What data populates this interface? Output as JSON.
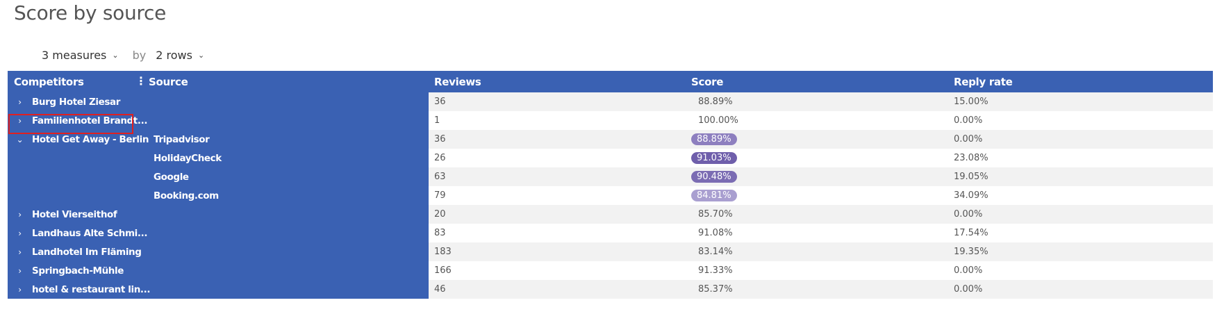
{
  "title": "Score by source",
  "controls": {
    "measures_label": "3 measures",
    "by_label": "by",
    "rows_label": "2 rows"
  },
  "columns": {
    "competitors": "Competitors",
    "source": "Source",
    "reviews": "Reviews",
    "score": "Score",
    "reply_rate": "Reply rate"
  },
  "rows": [
    {
      "competitor": "Burg Hotel Ziesar",
      "expander": "›",
      "source": "",
      "reviews": "36",
      "score": "88.89%",
      "reply": "15.00%"
    },
    {
      "competitor": "Familienhotel Brandt...",
      "expander": "›",
      "source": "",
      "reviews": "1",
      "score": "100.00%",
      "reply": "0.00%"
    },
    {
      "competitor": "Hotel Get Away - Berlin",
      "expander": "⌄",
      "source": "Tripadvisor",
      "reviews": "36",
      "score": "88.89%",
      "reply": "0.00%",
      "pill_color": "#8d7fbf"
    },
    {
      "competitor": "",
      "expander": "",
      "source": "HolidayCheck",
      "reviews": "26",
      "score": "91.03%",
      "reply": "23.08%",
      "pill_color": "#6f5fab"
    },
    {
      "competitor": "",
      "expander": "",
      "source": "Google",
      "reviews": "63",
      "score": "90.48%",
      "reply": "19.05%",
      "pill_color": "#7b6cb3"
    },
    {
      "competitor": "",
      "expander": "",
      "source": "Booking.com",
      "reviews": "79",
      "score": "84.81%",
      "reply": "34.09%",
      "pill_color": "#a99fd0"
    },
    {
      "competitor": "Hotel Vierseithof",
      "expander": "›",
      "source": "",
      "reviews": "20",
      "score": "85.70%",
      "reply": "0.00%"
    },
    {
      "competitor": "Landhaus Alte Schmi...",
      "expander": "›",
      "source": "",
      "reviews": "83",
      "score": "91.08%",
      "reply": "17.54%"
    },
    {
      "competitor": "Landhotel Im Fläming",
      "expander": "›",
      "source": "",
      "reviews": "183",
      "score": "83.14%",
      "reply": "19.35%"
    },
    {
      "competitor": "Springbach-Mühle",
      "expander": "›",
      "source": "",
      "reviews": "166",
      "score": "91.33%",
      "reply": "0.00%"
    },
    {
      "competitor": "hotel & restaurant lin...",
      "expander": "›",
      "source": "",
      "reviews": "46",
      "score": "85.37%",
      "reply": "0.00%"
    }
  ]
}
